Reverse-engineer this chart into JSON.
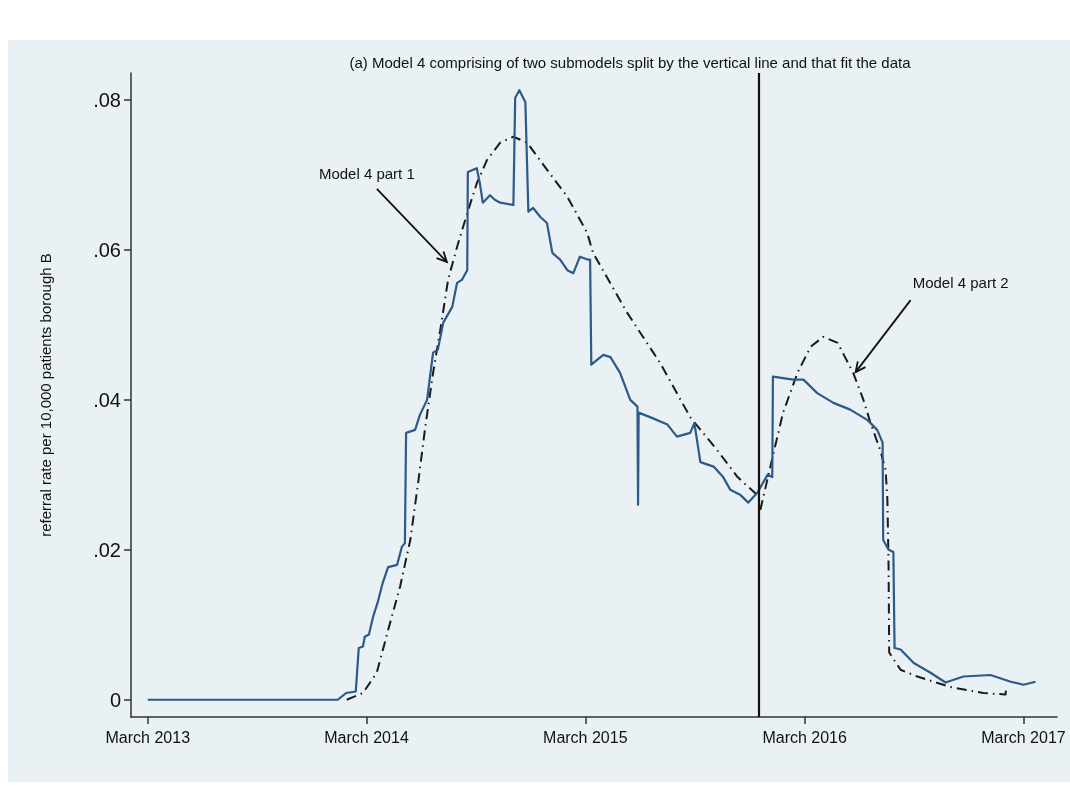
{
  "chart_data": {
    "type": "line",
    "title": "(a) Model 4 comprising of two submodels split by the vertical line and that fit the data",
    "ylabel": "referral rate per 10,000 patients borough B",
    "xlim": [
      "2013-02-01",
      "2017-04-26"
    ],
    "ylim": [
      -0.0023,
      0.0836
    ],
    "xticks": [
      {
        "value": "2013-03-01",
        "label": "March 2013"
      },
      {
        "value": "2014-03-01",
        "label": "March 2014"
      },
      {
        "value": "2015-03-01",
        "label": "March 2015"
      },
      {
        "value": "2016-03-01",
        "label": "March 2016"
      },
      {
        "value": "2017-03-01",
        "label": "March 2017"
      }
    ],
    "yticks": [
      0,
      {
        "value": 0.02,
        "label": ".02"
      },
      {
        "value": 0.04,
        "label": ".04"
      },
      {
        "value": 0.06,
        "label": ".06"
      },
      {
        "value": 0.08,
        "label": ".08"
      }
    ],
    "grid": false,
    "legend": false,
    "marker": "none",
    "series": [
      {
        "color": "#2d5a87",
        "line_style": "solid",
        "x": [
          "2013-03-01",
          "2014-01-12",
          "2014-01-26",
          "2014-02-11",
          "2014-02-16",
          "2014-02-23",
          "2014-02-26",
          "2014-03-05",
          "2014-03-12",
          "2014-03-20",
          "2014-03-28",
          "2014-04-06",
          "2014-04-21",
          "2014-04-29",
          "2014-05-04",
          "2014-05-06",
          "2014-05-21",
          "2014-05-29",
          "2014-06-10",
          "2014-06-20",
          "2014-06-28",
          "2014-07-07",
          "2014-07-22",
          "2014-07-30",
          "2014-08-07",
          "2014-08-16",
          "2014-08-17",
          "2014-09-01",
          "2014-09-06",
          "2014-09-11",
          "2014-09-23",
          "2014-10-01",
          "2014-10-10",
          "2014-11-01",
          "2014-11-04",
          "2014-11-11",
          "2014-11-21",
          "2014-11-26",
          "2014-12-04",
          "2014-12-16",
          "2014-12-27",
          "2015-01-05",
          "2015-01-18",
          "2015-01-30",
          "2015-02-09",
          "2015-02-20",
          "2015-03-06",
          "2015-03-09",
          "2015-03-11",
          "2015-03-31",
          "2015-04-12",
          "2015-04-28",
          "2015-05-15",
          "2015-05-27",
          "2015-05-28",
          "2015-05-29",
          "2015-06-17",
          "2015-07-16",
          "2015-08-01",
          "2015-08-23",
          "2015-08-30",
          "2015-09-09",
          "2015-10-01",
          "2015-10-17",
          "2015-10-29",
          "2015-11-15",
          "2015-11-28",
          "2015-12-13",
          "2015-12-30",
          "2016-01-07",
          "2016-01-08",
          "2016-02-11",
          "2016-02-28",
          "2016-03-22",
          "2016-04-18",
          "2016-05-16",
          "2016-06-14",
          "2016-06-30",
          "2016-07-09",
          "2016-07-10",
          "2016-07-19",
          "2016-07-27",
          "2016-07-29",
          "2016-08-08",
          "2016-08-30",
          "2016-09-27",
          "2016-10-22",
          "2016-11-21",
          "2017-01-05",
          "2017-02-08",
          "2017-03-01",
          "2017-03-21"
        ],
        "values": [
          0,
          0,
          0.0009,
          0.0011,
          0.0069,
          0.0071,
          0.0084,
          0.0087,
          0.0111,
          0.0131,
          0.0156,
          0.0177,
          0.018,
          0.0204,
          0.0209,
          0.0356,
          0.036,
          0.038,
          0.04,
          0.0463,
          0.0467,
          0.0503,
          0.0524,
          0.0556,
          0.056,
          0.0573,
          0.0704,
          0.0709,
          0.0689,
          0.0663,
          0.0673,
          0.0667,
          0.0663,
          0.066,
          0.0803,
          0.0813,
          0.0797,
          0.0651,
          0.0656,
          0.0644,
          0.0636,
          0.0596,
          0.0587,
          0.0573,
          0.0569,
          0.0591,
          0.0587,
          0.0587,
          0.0447,
          0.046,
          0.0457,
          0.0436,
          0.04,
          0.0391,
          0.026,
          0.0383,
          0.0377,
          0.0367,
          0.0351,
          0.0356,
          0.0369,
          0.0317,
          0.0311,
          0.0297,
          0.028,
          0.0273,
          0.0263,
          0.0276,
          0.03,
          0.0297,
          0.0431,
          0.0427,
          0.0427,
          0.0409,
          0.0396,
          0.0387,
          0.0373,
          0.036,
          0.0343,
          0.0213,
          0.02,
          0.0197,
          0.0069,
          0.0067,
          0.0049,
          0.0036,
          0.0023,
          0.0031,
          0.0033,
          0.0024,
          0.002,
          0.0024
        ]
      },
      {
        "color": "#1a1a1a",
        "line_style": "dashed",
        "x": [
          "2014-01-27",
          "2014-02-23",
          "2014-03-18",
          "2014-04-06",
          "2014-04-26",
          "2014-05-13",
          "2014-05-26",
          "2014-06-07",
          "2014-06-20",
          "2014-07-02",
          "2014-07-15",
          "2014-07-30",
          "2014-08-16",
          "2014-09-01",
          "2014-09-18",
          "2014-10-10",
          "2014-11-01",
          "2014-11-24",
          "2014-12-27",
          "2015-01-30",
          "2015-03-04",
          "2015-03-14",
          "2015-05-10",
          "2015-07-04",
          "2015-08-23",
          "2015-10-07",
          "2015-11-10",
          "2015-12-13"
        ],
        "values": [
          0,
          0.0009,
          0.0036,
          0.0093,
          0.0151,
          0.0213,
          0.0289,
          0.0364,
          0.0436,
          0.0493,
          0.056,
          0.0604,
          0.0649,
          0.0689,
          0.072,
          0.0743,
          0.0751,
          0.0743,
          0.0707,
          0.0671,
          0.0623,
          0.0596,
          0.0516,
          0.0449,
          0.0377,
          0.0333,
          0.0297,
          0.0273
        ]
      },
      {
        "color": "#1a1a1a",
        "line_style": "dashed",
        "x": [
          "2015-12-18",
          "2016-01-09",
          "2016-01-25",
          "2016-02-18",
          "2016-03-11",
          "2016-04-01",
          "2016-04-25",
          "2016-05-21",
          "2016-06-07",
          "2016-06-19",
          "2016-07-05",
          "2016-07-14",
          "2016-07-17",
          "2016-07-19",
          "2016-07-20",
          "2016-08-08",
          "2016-09-05",
          "2016-10-30",
          "2016-12-24",
          "2017-01-30",
          "2017-01-31"
        ],
        "values": [
          0.0253,
          0.0329,
          0.0383,
          0.0436,
          0.0471,
          0.0484,
          0.0476,
          0.0436,
          0.04,
          0.0369,
          0.0333,
          0.0307,
          0.0267,
          0.0177,
          0.0063,
          0.004,
          0.0031,
          0.0017,
          0.0009,
          0.0007,
          0.0013
        ]
      }
    ],
    "ref_lines": [
      {
        "axis": "x",
        "value": "2015-12-15",
        "color": "#111111",
        "line_style": "solid"
      }
    ],
    "annotations": [
      {
        "text": "Model 4 part 1",
        "x": "2014-07-13",
        "y": 0.0584
      },
      {
        "text": "Model 4 part 2",
        "x": "2016-05-25",
        "y": 0.0437
      }
    ]
  }
}
